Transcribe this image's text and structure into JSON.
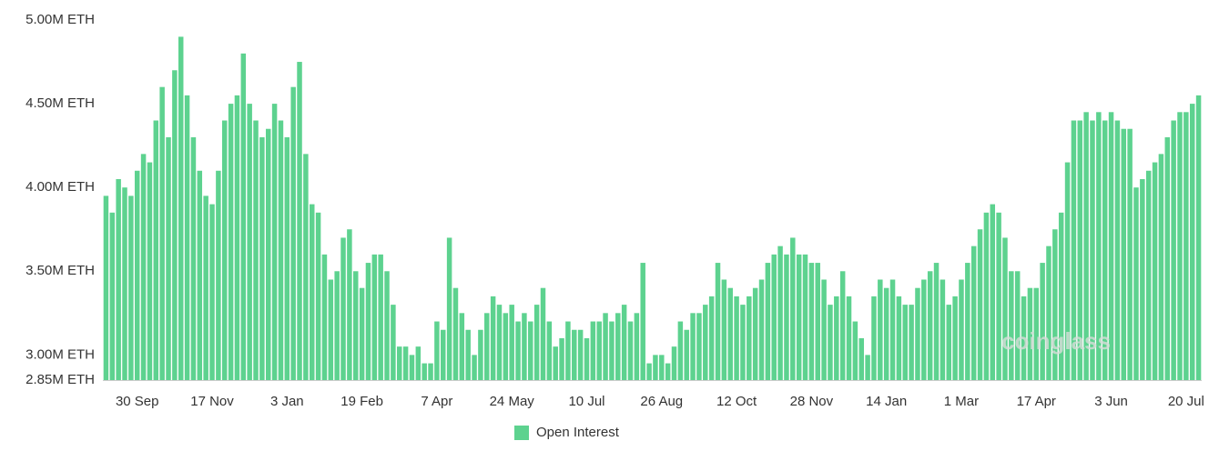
{
  "chart_data": {
    "type": "bar",
    "categories": [
      null,
      null,
      null,
      null,
      null,
      "30 Sep",
      null,
      null,
      null,
      null,
      null,
      null,
      null,
      null,
      null,
      null,
      null,
      "17 Nov",
      null,
      null,
      null,
      null,
      null,
      null,
      null,
      null,
      null,
      null,
      null,
      "3 Jan",
      null,
      null,
      null,
      null,
      null,
      null,
      null,
      null,
      null,
      null,
      null,
      "19 Feb",
      null,
      null,
      null,
      null,
      null,
      null,
      null,
      null,
      null,
      null,
      null,
      "7 Apr",
      null,
      null,
      null,
      null,
      null,
      null,
      null,
      null,
      null,
      null,
      null,
      "24 May",
      null,
      null,
      null,
      null,
      null,
      null,
      null,
      null,
      null,
      null,
      null,
      "10 Jul",
      null,
      null,
      null,
      null,
      null,
      null,
      null,
      null,
      null,
      null,
      null,
      "26 Aug",
      null,
      null,
      null,
      null,
      null,
      null,
      null,
      null,
      null,
      null,
      null,
      "12 Oct",
      null,
      null,
      null,
      null,
      null,
      null,
      null,
      null,
      null,
      null,
      null,
      "28 Nov",
      null,
      null,
      null,
      null,
      null,
      null,
      null,
      null,
      null,
      null,
      null,
      "14 Jan",
      null,
      null,
      null,
      null,
      null,
      null,
      null,
      null,
      null,
      null,
      null,
      "1 Mar",
      null,
      null,
      null,
      null,
      null,
      null,
      null,
      null,
      null,
      null,
      null,
      "17 Apr",
      null,
      null,
      null,
      null,
      null,
      null,
      null,
      null,
      null,
      null,
      null,
      "3 Jun",
      null,
      null,
      null,
      null,
      null,
      null,
      null,
      null,
      null,
      null,
      null,
      "20 Jul",
      null,
      null
    ],
    "series": [
      {
        "name": "Open Interest",
        "color": "#5dd28f",
        "values": [
          3.95,
          3.85,
          4.05,
          4.0,
          3.95,
          4.1,
          4.2,
          4.15,
          4.4,
          4.6,
          4.3,
          4.7,
          4.9,
          4.55,
          4.3,
          4.1,
          3.95,
          3.9,
          4.1,
          4.4,
          4.5,
          4.55,
          4.8,
          4.5,
          4.4,
          4.3,
          4.35,
          4.5,
          4.4,
          4.3,
          4.6,
          4.75,
          4.2,
          3.9,
          3.85,
          3.6,
          3.45,
          3.5,
          3.7,
          3.75,
          3.5,
          3.4,
          3.55,
          3.6,
          3.6,
          3.5,
          3.3,
          3.05,
          3.05,
          3.0,
          3.05,
          2.95,
          2.95,
          3.2,
          3.15,
          3.7,
          3.4,
          3.25,
          3.15,
          3.0,
          3.15,
          3.25,
          3.35,
          3.3,
          3.25,
          3.3,
          3.2,
          3.25,
          3.2,
          3.3,
          3.4,
          3.2,
          3.05,
          3.1,
          3.2,
          3.15,
          3.15,
          3.1,
          3.2,
          3.2,
          3.25,
          3.2,
          3.25,
          3.3,
          3.2,
          3.25,
          3.55,
          2.95,
          3.0,
          3.0,
          2.95,
          3.05,
          3.2,
          3.15,
          3.25,
          3.25,
          3.3,
          3.35,
          3.55,
          3.45,
          3.4,
          3.35,
          3.3,
          3.35,
          3.4,
          3.45,
          3.55,
          3.6,
          3.65,
          3.6,
          3.7,
          3.6,
          3.6,
          3.55,
          3.55,
          3.45,
          3.3,
          3.35,
          3.5,
          3.35,
          3.2,
          3.1,
          3.0,
          3.35,
          3.45,
          3.4,
          3.45,
          3.35,
          3.3,
          3.3,
          3.4,
          3.45,
          3.5,
          3.55,
          3.45,
          3.3,
          3.35,
          3.45,
          3.55,
          3.65,
          3.75,
          3.85,
          3.9,
          3.85,
          3.7,
          3.5,
          3.5,
          3.35,
          3.4,
          3.4,
          3.55,
          3.65,
          3.75,
          3.85,
          4.15,
          4.4,
          4.4,
          4.45,
          4.4,
          4.45,
          4.4,
          4.45,
          4.4,
          4.35,
          4.35,
          4.0,
          4.05,
          4.1,
          4.15,
          4.2,
          4.3,
          4.4,
          4.45,
          4.45,
          4.5,
          4.55
        ]
      }
    ],
    "ylim": [
      2.85,
      5.0
    ],
    "yticks": [
      {
        "value": 2.85,
        "label": "2.85M ETH"
      },
      {
        "value": 3.0,
        "label": "3.00M ETH"
      },
      {
        "value": 3.5,
        "label": "3.50M ETH"
      },
      {
        "value": 4.0,
        "label": "4.00M ETH"
      },
      {
        "value": 4.5,
        "label": "4.50M ETH"
      },
      {
        "value": 5.0,
        "label": "5.00M ETH"
      }
    ],
    "grid": false,
    "legend": "bottom",
    "watermark": "coinglass"
  }
}
